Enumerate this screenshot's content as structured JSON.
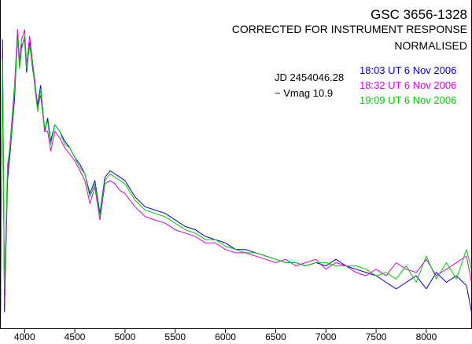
{
  "chart_data": {
    "type": "line",
    "title": "GSC 3656-1328",
    "subtitle_lines": [
      "CORRECTED FOR INSTRUMENT RESPONSE",
      "NORMALISED"
    ],
    "annotations": [
      "JD 2454046.28",
      "~  Vmag  10.9"
    ],
    "xlabel": "",
    "ylabel": "",
    "xlim": [
      3755,
      8455
    ],
    "ylim": [
      0,
      1
    ],
    "x_ticks": [
      4000,
      4500,
      5000,
      5500,
      6000,
      6500,
      7000,
      7500,
      8000
    ],
    "grid": false,
    "legend_position": "top-right",
    "series": [
      {
        "name": "18:03 UT 6 Nov 2006",
        "color": "#0000cc",
        "x": [
          3760,
          3780,
          3800,
          3830,
          3860,
          3900,
          3930,
          3950,
          3970,
          4000,
          4020,
          4050,
          4080,
          4100,
          4130,
          4160,
          4200,
          4230,
          4260,
          4300,
          4350,
          4400,
          4450,
          4500,
          4550,
          4600,
          4650,
          4700,
          4750,
          4800,
          4850,
          4900,
          4950,
          5000,
          5100,
          5200,
          5300,
          5400,
          5500,
          5600,
          5700,
          5800,
          5900,
          6000,
          6100,
          6200,
          6300,
          6400,
          6500,
          6600,
          6700,
          6800,
          6900,
          7000,
          7100,
          7200,
          7300,
          7400,
          7500,
          7600,
          7700,
          7800,
          7900,
          8000,
          8100,
          8200,
          8300,
          8400,
          8450
        ],
        "y": [
          0.02,
          0.88,
          0.05,
          0.45,
          0.55,
          0.7,
          0.89,
          0.8,
          0.86,
          0.88,
          0.78,
          0.87,
          0.79,
          0.75,
          0.68,
          0.74,
          0.6,
          0.64,
          0.57,
          0.62,
          0.6,
          0.57,
          0.55,
          0.52,
          0.5,
          0.47,
          0.41,
          0.45,
          0.35,
          0.46,
          0.48,
          0.47,
          0.46,
          0.45,
          0.4,
          0.37,
          0.36,
          0.35,
          0.33,
          0.31,
          0.3,
          0.28,
          0.27,
          0.26,
          0.24,
          0.24,
          0.23,
          0.22,
          0.21,
          0.2,
          0.2,
          0.19,
          0.2,
          0.19,
          0.21,
          0.19,
          0.18,
          0.17,
          0.16,
          0.14,
          0.12,
          0.14,
          0.16,
          0.12,
          0.17,
          0.14,
          0.16,
          0.13,
          0.05
        ]
      },
      {
        "name": "18:32 UT 6 Nov 2006",
        "color": "#dd00dd",
        "x": [
          3760,
          3780,
          3800,
          3830,
          3860,
          3900,
          3930,
          3950,
          3970,
          4000,
          4020,
          4050,
          4080,
          4100,
          4130,
          4160,
          4200,
          4230,
          4260,
          4300,
          4350,
          4400,
          4450,
          4500,
          4550,
          4600,
          4650,
          4700,
          4750,
          4800,
          4850,
          4900,
          4950,
          5000,
          5100,
          5200,
          5300,
          5400,
          5500,
          5600,
          5700,
          5800,
          5900,
          6000,
          6100,
          6200,
          6300,
          6400,
          6500,
          6600,
          6700,
          6800,
          6900,
          7000,
          7100,
          7200,
          7300,
          7400,
          7500,
          7600,
          7700,
          7800,
          7900,
          8000,
          8100,
          8200,
          8300,
          8400,
          8450
        ],
        "y": [
          0.05,
          0.8,
          0.08,
          0.48,
          0.58,
          0.74,
          0.91,
          0.81,
          0.88,
          0.91,
          0.8,
          0.89,
          0.81,
          0.76,
          0.67,
          0.71,
          0.6,
          0.6,
          0.54,
          0.6,
          0.58,
          0.55,
          0.53,
          0.51,
          0.48,
          0.45,
          0.38,
          0.43,
          0.33,
          0.44,
          0.45,
          0.44,
          0.42,
          0.41,
          0.37,
          0.34,
          0.33,
          0.32,
          0.3,
          0.29,
          0.28,
          0.26,
          0.26,
          0.24,
          0.23,
          0.23,
          0.22,
          0.21,
          0.2,
          0.21,
          0.19,
          0.2,
          0.21,
          0.18,
          0.2,
          0.19,
          0.17,
          0.16,
          0.18,
          0.16,
          0.2,
          0.18,
          0.17,
          0.21,
          0.16,
          0.18,
          0.2,
          0.22,
          0.14
        ]
      },
      {
        "name": "19:09 UT 6 Nov 2006",
        "color": "#00cc00",
        "x": [
          3760,
          3780,
          3800,
          3830,
          3860,
          3900,
          3930,
          3950,
          3970,
          4000,
          4020,
          4050,
          4080,
          4100,
          4130,
          4160,
          4200,
          4230,
          4260,
          4300,
          4350,
          4400,
          4450,
          4500,
          4550,
          4600,
          4650,
          4700,
          4750,
          4800,
          4850,
          4900,
          4950,
          5000,
          5100,
          5200,
          5300,
          5400,
          5500,
          5600,
          5700,
          5800,
          5900,
          6000,
          6100,
          6200,
          6300,
          6400,
          6500,
          6600,
          6700,
          6800,
          6900,
          7000,
          7100,
          7200,
          7300,
          7400,
          7500,
          7600,
          7700,
          7800,
          7900,
          8000,
          8100,
          8200,
          8300,
          8400,
          8450
        ],
        "y": [
          0.1,
          0.82,
          0.12,
          0.5,
          0.56,
          0.72,
          0.88,
          0.79,
          0.85,
          0.89,
          0.79,
          0.86,
          0.8,
          0.74,
          0.66,
          0.73,
          0.61,
          0.63,
          0.56,
          0.62,
          0.6,
          0.56,
          0.55,
          0.52,
          0.49,
          0.47,
          0.4,
          0.44,
          0.34,
          0.45,
          0.47,
          0.46,
          0.45,
          0.44,
          0.39,
          0.36,
          0.35,
          0.34,
          0.32,
          0.3,
          0.29,
          0.27,
          0.27,
          0.25,
          0.24,
          0.23,
          0.23,
          0.22,
          0.21,
          0.2,
          0.2,
          0.19,
          0.2,
          0.2,
          0.19,
          0.19,
          0.19,
          0.18,
          0.16,
          0.17,
          0.15,
          0.19,
          0.14,
          0.22,
          0.15,
          0.2,
          0.15,
          0.24,
          0.18
        ]
      }
    ]
  }
}
